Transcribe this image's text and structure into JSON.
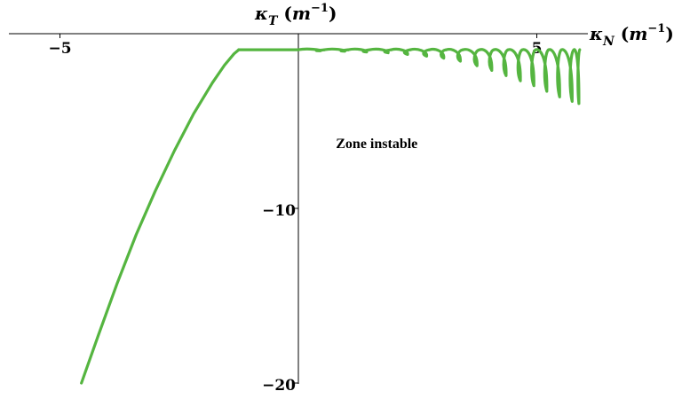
{
  "chart_data": {
    "type": "line",
    "xlabel": {
      "sym": "κ",
      "sub": "N",
      "unit_open": " (",
      "unit": "m",
      "exp": "−1",
      "unit_close": ")"
    },
    "ylabel": {
      "sym": "κ",
      "sub": "T",
      "unit_open": " (",
      "unit": "m",
      "exp": "−1",
      "unit_close": ")"
    },
    "xlim": [
      -6.05,
      6.0
    ],
    "ylim": [
      -20.0,
      0.0
    ],
    "x_ticks": [
      {
        "value": -5,
        "label": "−5"
      },
      {
        "value": 5,
        "label": "5"
      }
    ],
    "y_ticks": [
      {
        "value": -10,
        "label": "−10"
      },
      {
        "value": -20,
        "label": "−20"
      }
    ],
    "annotation": {
      "text": "Zone instable",
      "x": 2.5,
      "y": -6.3
    },
    "grid": false,
    "series": [
      {
        "color": "#55b540",
        "stable_branch": {
          "x": [
            -4.55,
            -4.2,
            -3.8,
            -3.4,
            -3.0,
            -2.6,
            -2.2,
            -1.8,
            -1.55,
            -1.35,
            -1.25
          ],
          "y": [
            -20.0,
            -17.3,
            -14.3,
            -11.5,
            -9.0,
            -6.7,
            -4.6,
            -2.8,
            -1.8,
            -1.15,
            -0.92
          ]
        },
        "flat_top": {
          "x": [
            -1.25,
            0.0
          ],
          "y": -0.92
        },
        "oscillating_tail": {
          "x_start": 0.0,
          "x_end": 5.9,
          "baseline_y": -0.92,
          "crossings": [
            0.0,
            0.55,
            1.05,
            1.5,
            1.95,
            2.35,
            2.75,
            3.1,
            3.45,
            3.8,
            4.1,
            4.4,
            4.7,
            4.98,
            5.25,
            5.52,
            5.78,
            6.0
          ],
          "lower_envelope": {
            "x": [
              0.0,
              1.0,
              2.0,
              3.0,
              3.5,
              4.0,
              4.5,
              5.0,
              5.5,
              5.9
            ],
            "y": [
              -0.96,
              -1.0,
              -1.1,
              -1.35,
              -1.6,
              -2.0,
              -2.5,
              -3.0,
              -3.6,
              -4.0
            ]
          }
        }
      }
    ]
  }
}
